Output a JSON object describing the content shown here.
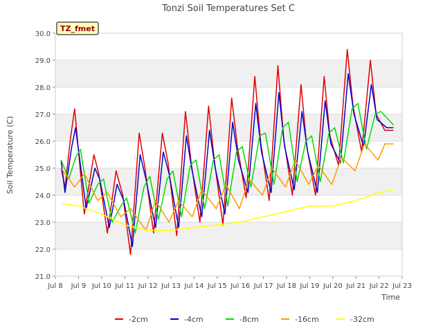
{
  "chart_data": {
    "type": "line",
    "title": "Tonzi Soil Temperatures Set C",
    "xlabel": "Time",
    "ylabel": "Soil Temperature (C)",
    "site_label": "TZ_fmet",
    "x_ticks": [
      "Jul 8",
      "Jul 9",
      "Jul 10",
      "Jul 11",
      "Jul 12",
      "Jul 13",
      "Jul 14",
      "Jul 15",
      "Jul 16",
      "Jul 17",
      "Jul 18",
      "Jul 19",
      "Jul 20",
      "Jul 21",
      "Jul 22",
      "Jul 23"
    ],
    "y_ticks": [
      "21.0",
      "22.0",
      "23.0",
      "24.0",
      "25.0",
      "26.0",
      "27.0",
      "28.0",
      "29.0",
      "30.0"
    ],
    "xlim": [
      "Jul 8 00:00",
      "Jul 23 00:00"
    ],
    "ylim": [
      21.0,
      30.0
    ],
    "grid": true,
    "legend_position": "bottom",
    "series": [
      {
        "name": "-2cm",
        "color": "#dd0000",
        "x": [
          "Jul 8 06:00",
          "Jul 8 10:00",
          "Jul 8 16:00",
          "Jul 8 20:00",
          "Jul 9 06:00",
          "Jul 9 16:00",
          "Jul 9 21:00",
          "Jul 10 06:00",
          "Jul 10 15:00",
          "Jul 10 22:00",
          "Jul 11 06:00",
          "Jul 11 15:00",
          "Jul 11 21:00",
          "Jul 12 06:00",
          "Jul 12 15:00",
          "Jul 12 21:00",
          "Jul 13 06:00",
          "Jul 13 15:00",
          "Jul 13 21:00",
          "Jul 14 06:00",
          "Jul 14 15:00",
          "Jul 14 21:00",
          "Jul 15 06:00",
          "Jul 15 15:00",
          "Jul 15 21:00",
          "Jul 16 06:00",
          "Jul 16 15:00",
          "Jul 16 21:00",
          "Jul 17 06:00",
          "Jul 17 15:00",
          "Jul 17 21:00",
          "Jul 18 06:00",
          "Jul 18 15:00",
          "Jul 18 21:00",
          "Jul 19 06:00",
          "Jul 19 15:00",
          "Jul 19 21:00",
          "Jul 20 06:00",
          "Jul 20 15:00",
          "Jul 20 21:00",
          "Jul 21 06:00",
          "Jul 21 15:00",
          "Jul 21 21:00",
          "Jul 22 06:00",
          "Jul 22 15:00"
        ],
        "y": [
          25.0,
          24.3,
          26.2,
          27.2,
          23.3,
          25.5,
          24.8,
          22.6,
          24.9,
          24.0,
          21.8,
          26.3,
          25.0,
          22.6,
          26.3,
          25.2,
          22.5,
          27.1,
          25.2,
          23.0,
          27.3,
          25.3,
          22.9,
          27.6,
          25.8,
          23.9,
          28.4,
          26.0,
          23.8,
          28.8,
          26.1,
          24.0,
          28.1,
          25.8,
          24.0,
          28.4,
          26.2,
          25.1,
          29.4,
          27.3,
          25.6,
          29.0,
          27.0,
          26.4,
          26.4
        ]
      },
      {
        "name": "-4cm",
        "color": "#0000cc",
        "x": [
          "Jul 8 06:00",
          "Jul 8 10:00",
          "Jul 8 17:00",
          "Jul 8 21:00",
          "Jul 9 08:00",
          "Jul 9 17:00",
          "Jul 9 22:00",
          "Jul 10 08:00",
          "Jul 10 16:00",
          "Jul 10 23:00",
          "Jul 11 08:00",
          "Jul 11 16:00",
          "Jul 11 22:00",
          "Jul 12 08:00",
          "Jul 12 16:00",
          "Jul 12 22:00",
          "Jul 13 08:00",
          "Jul 13 16:00",
          "Jul 13 22:00",
          "Jul 14 08:00",
          "Jul 14 16:00",
          "Jul 14 22:00",
          "Jul 15 08:00",
          "Jul 15 16:00",
          "Jul 15 22:00",
          "Jul 16 08:00",
          "Jul 16 16:00",
          "Jul 16 22:00",
          "Jul 17 08:00",
          "Jul 17 16:00",
          "Jul 17 22:00",
          "Jul 18 08:00",
          "Jul 18 16:00",
          "Jul 18 22:00",
          "Jul 19 08:00",
          "Jul 19 16:00",
          "Jul 19 22:00",
          "Jul 20 08:00",
          "Jul 20 16:00",
          "Jul 20 22:00",
          "Jul 21 08:00",
          "Jul 21 16:00",
          "Jul 21 22:00",
          "Jul 22 08:00",
          "Jul 22 15:00"
        ],
        "y": [
          25.3,
          24.1,
          25.8,
          26.5,
          23.5,
          25.0,
          24.6,
          22.8,
          24.4,
          23.8,
          22.1,
          25.5,
          24.6,
          22.8,
          25.6,
          24.8,
          22.8,
          26.2,
          24.9,
          23.2,
          26.4,
          25.0,
          23.3,
          26.7,
          25.3,
          24.1,
          27.4,
          25.6,
          24.1,
          27.8,
          25.8,
          24.2,
          27.1,
          25.6,
          24.1,
          27.5,
          25.9,
          25.2,
          28.5,
          27.0,
          25.8,
          28.1,
          26.8,
          26.5,
          26.5
        ]
      },
      {
        "name": "-8cm",
        "color": "#00dd00",
        "x": [
          "Jul 8 06:00",
          "Jul 8 14:00",
          "Jul 8 21:00",
          "Jul 9 02:00",
          "Jul 9 11:00",
          "Jul 9 20:00",
          "Jul 10 02:00",
          "Jul 10 11:00",
          "Jul 10 20:00",
          "Jul 11 02:00",
          "Jul 11 11:00",
          "Jul 11 20:00",
          "Jul 12 02:00",
          "Jul 12 11:00",
          "Jul 12 20:00",
          "Jul 13 02:00",
          "Jul 13 11:00",
          "Jul 13 20:00",
          "Jul 14 02:00",
          "Jul 14 11:00",
          "Jul 14 20:00",
          "Jul 15 02:00",
          "Jul 15 11:00",
          "Jul 15 20:00",
          "Jul 16 02:00",
          "Jul 16 11:00",
          "Jul 16 20:00",
          "Jul 17 02:00",
          "Jul 17 11:00",
          "Jul 17 20:00",
          "Jul 18 02:00",
          "Jul 18 11:00",
          "Jul 18 20:00",
          "Jul 19 02:00",
          "Jul 19 11:00",
          "Jul 19 20:00",
          "Jul 20 02:00",
          "Jul 20 11:00",
          "Jul 20 20:00",
          "Jul 21 02:00",
          "Jul 21 11:00",
          "Jul 21 20:00",
          "Jul 22 02:00",
          "Jul 22 15:00"
        ],
        "y": [
          25.3,
          24.6,
          25.4,
          25.7,
          23.7,
          24.4,
          24.6,
          23.0,
          23.6,
          23.9,
          22.6,
          24.3,
          24.7,
          23.1,
          24.6,
          24.9,
          23.2,
          25.1,
          25.3,
          23.5,
          25.3,
          25.5,
          23.6,
          25.6,
          25.8,
          24.3,
          26.2,
          26.3,
          24.4,
          26.5,
          26.7,
          24.5,
          26.0,
          26.2,
          24.5,
          26.3,
          26.5,
          25.2,
          27.2,
          27.4,
          25.7,
          27.0,
          27.1,
          26.6
        ]
      },
      {
        "name": "-16cm",
        "color": "#ff9900",
        "x": [
          "Jul 8 06:00",
          "Jul 8 20:00",
          "Jul 9 06:00",
          "Jul 9 20:00",
          "Jul 10 06:00",
          "Jul 10 20:00",
          "Jul 11 06:00",
          "Jul 11 22:00",
          "Jul 12 08:00",
          "Jul 12 22:00",
          "Jul 13 08:00",
          "Jul 13 22:00",
          "Jul 14 08:00",
          "Jul 14 23:00",
          "Jul 15 09:00",
          "Jul 15 23:00",
          "Jul 16 09:00",
          "Jul 16 23:00",
          "Jul 17 09:00",
          "Jul 17 23:00",
          "Jul 18 09:00",
          "Jul 18 23:00",
          "Jul 19 09:00",
          "Jul 19 23:00",
          "Jul 20 09:00",
          "Jul 20 23:00",
          "Jul 21 09:00",
          "Jul 21 23:00",
          "Jul 22 06:00",
          "Jul 22 15:00"
        ],
        "y": [
          25.0,
          24.3,
          24.8,
          23.8,
          24.1,
          23.2,
          23.5,
          22.7,
          23.8,
          23.0,
          23.8,
          23.2,
          24.2,
          23.5,
          24.4,
          23.5,
          24.6,
          24.0,
          25.0,
          24.3,
          25.3,
          24.4,
          25.1,
          24.4,
          25.4,
          24.9,
          25.9,
          25.3,
          25.9,
          25.9
        ]
      },
      {
        "name": "-32cm",
        "color": "#ffff00",
        "x": [
          "Jul 8 06:00",
          "Jul 9 00:00",
          "Jul 10 00:00",
          "Jul 11 00:00",
          "Jul 12 00:00",
          "Jul 13 00:00",
          "Jul 14 00:00",
          "Jul 15 00:00",
          "Jul 16 00:00",
          "Jul 17 00:00",
          "Jul 18 00:00",
          "Jul 19 00:00",
          "Jul 20 00:00",
          "Jul 21 00:00",
          "Jul 22 00:00",
          "Jul 22 15:00"
        ],
        "y": [
          23.7,
          23.6,
          23.3,
          22.9,
          22.7,
          22.7,
          22.8,
          22.9,
          23.0,
          23.2,
          23.4,
          23.6,
          23.6,
          23.8,
          24.1,
          24.2
        ]
      }
    ]
  }
}
